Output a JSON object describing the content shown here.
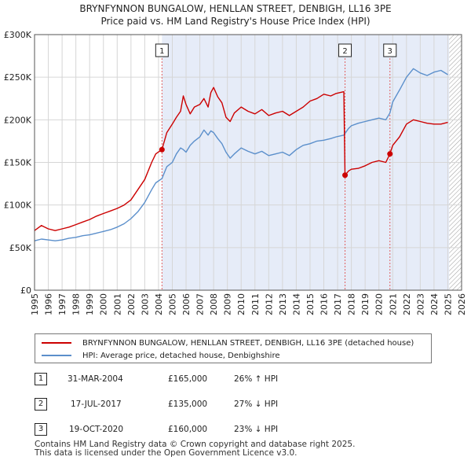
{
  "chart_data": {
    "type": "line",
    "title": "BRYNFYNNON BUNGALOW, HENLLAN STREET, DENBIGH, LL16 3PE",
    "subtitle": "Price paid vs. HM Land Registry's House Price Index (HPI)",
    "x_ticks": [
      "1995",
      "1996",
      "1997",
      "1998",
      "1999",
      "2000",
      "2001",
      "2002",
      "2003",
      "2004",
      "2005",
      "2006",
      "2007",
      "2008",
      "2009",
      "2010",
      "2011",
      "2012",
      "2013",
      "2014",
      "2015",
      "2016",
      "2017",
      "2018",
      "2019",
      "2020",
      "2021",
      "2022",
      "2023",
      "2024",
      "2025",
      "2026"
    ],
    "y_ticks": [
      "£0",
      "£50K",
      "£100K",
      "£150K",
      "£200K",
      "£250K",
      "£300K"
    ],
    "xlim": [
      1995,
      2026
    ],
    "ylim": [
      0,
      300000
    ],
    "grid": true,
    "series": [
      {
        "name": "BRYNFYNNON BUNGALOW, HENLLAN STREET, DENBIGH, LL16 3PE (detached house)",
        "color": "#cc0000",
        "points": [
          [
            1995.0,
            70000
          ],
          [
            1995.5,
            76000
          ],
          [
            1996.0,
            72000
          ],
          [
            1996.5,
            70000
          ],
          [
            1997.0,
            72000
          ],
          [
            1997.5,
            74000
          ],
          [
            1998.0,
            77000
          ],
          [
            1998.5,
            80000
          ],
          [
            1999.0,
            83000
          ],
          [
            1999.5,
            87000
          ],
          [
            2000.0,
            90000
          ],
          [
            2000.5,
            93000
          ],
          [
            2001.0,
            96000
          ],
          [
            2001.5,
            100000
          ],
          [
            2002.0,
            106000
          ],
          [
            2002.5,
            118000
          ],
          [
            2003.0,
            130000
          ],
          [
            2003.5,
            150000
          ],
          [
            2003.8,
            160000
          ],
          [
            2004.25,
            165000
          ],
          [
            2004.6,
            185000
          ],
          [
            2005.0,
            195000
          ],
          [
            2005.3,
            203000
          ],
          [
            2005.6,
            210000
          ],
          [
            2005.8,
            228000
          ],
          [
            2006.0,
            218000
          ],
          [
            2006.3,
            207000
          ],
          [
            2006.6,
            215000
          ],
          [
            2007.0,
            218000
          ],
          [
            2007.3,
            225000
          ],
          [
            2007.6,
            215000
          ],
          [
            2007.8,
            232000
          ],
          [
            2008.0,
            238000
          ],
          [
            2008.3,
            227000
          ],
          [
            2008.6,
            220000
          ],
          [
            2008.9,
            203000
          ],
          [
            2009.2,
            198000
          ],
          [
            2009.5,
            208000
          ],
          [
            2010.0,
            215000
          ],
          [
            2010.5,
            210000
          ],
          [
            2011.0,
            207000
          ],
          [
            2011.5,
            212000
          ],
          [
            2012.0,
            205000
          ],
          [
            2012.5,
            208000
          ],
          [
            2013.0,
            210000
          ],
          [
            2013.5,
            205000
          ],
          [
            2014.0,
            210000
          ],
          [
            2014.5,
            215000
          ],
          [
            2015.0,
            222000
          ],
          [
            2015.5,
            225000
          ],
          [
            2016.0,
            230000
          ],
          [
            2016.5,
            228000
          ],
          [
            2016.9,
            231000
          ],
          [
            2017.45,
            233000
          ],
          [
            2017.54,
            135000
          ],
          [
            2017.8,
            140000
          ],
          [
            2018.0,
            142000
          ],
          [
            2018.5,
            143000
          ],
          [
            2019.0,
            146000
          ],
          [
            2019.5,
            150000
          ],
          [
            2020.0,
            152000
          ],
          [
            2020.5,
            150000
          ],
          [
            2020.8,
            160000
          ],
          [
            2021.0,
            170000
          ],
          [
            2021.5,
            180000
          ],
          [
            2022.0,
            195000
          ],
          [
            2022.5,
            200000
          ],
          [
            2023.0,
            198000
          ],
          [
            2023.5,
            196000
          ],
          [
            2024.0,
            195000
          ],
          [
            2024.5,
            195000
          ],
          [
            2025.0,
            197000
          ]
        ]
      },
      {
        "name": "HPI: Average price, detached house, Denbighshire",
        "color": "#5b8fcb",
        "points": [
          [
            1995.0,
            58000
          ],
          [
            1995.5,
            60000
          ],
          [
            1996.0,
            59000
          ],
          [
            1996.5,
            58000
          ],
          [
            1997.0,
            59000
          ],
          [
            1997.5,
            61000
          ],
          [
            1998.0,
            62000
          ],
          [
            1998.5,
            64000
          ],
          [
            1999.0,
            65000
          ],
          [
            1999.5,
            67000
          ],
          [
            2000.0,
            69000
          ],
          [
            2000.5,
            71000
          ],
          [
            2001.0,
            74000
          ],
          [
            2001.5,
            78000
          ],
          [
            2002.0,
            84000
          ],
          [
            2002.5,
            92000
          ],
          [
            2003.0,
            103000
          ],
          [
            2003.5,
            118000
          ],
          [
            2003.8,
            126000
          ],
          [
            2004.25,
            131000
          ],
          [
            2004.6,
            145000
          ],
          [
            2005.0,
            150000
          ],
          [
            2005.3,
            160000
          ],
          [
            2005.6,
            167000
          ],
          [
            2005.8,
            165000
          ],
          [
            2006.0,
            162000
          ],
          [
            2006.3,
            170000
          ],
          [
            2006.6,
            175000
          ],
          [
            2007.0,
            180000
          ],
          [
            2007.3,
            188000
          ],
          [
            2007.6,
            182000
          ],
          [
            2007.8,
            187000
          ],
          [
            2008.0,
            185000
          ],
          [
            2008.3,
            178000
          ],
          [
            2008.6,
            172000
          ],
          [
            2008.9,
            162000
          ],
          [
            2009.2,
            155000
          ],
          [
            2009.5,
            160000
          ],
          [
            2010.0,
            167000
          ],
          [
            2010.5,
            163000
          ],
          [
            2011.0,
            160000
          ],
          [
            2011.5,
            163000
          ],
          [
            2012.0,
            158000
          ],
          [
            2012.5,
            160000
          ],
          [
            2013.0,
            162000
          ],
          [
            2013.5,
            158000
          ],
          [
            2014.0,
            165000
          ],
          [
            2014.5,
            170000
          ],
          [
            2015.0,
            172000
          ],
          [
            2015.5,
            175000
          ],
          [
            2016.0,
            176000
          ],
          [
            2016.5,
            178000
          ],
          [
            2016.9,
            180000
          ],
          [
            2017.45,
            182000
          ],
          [
            2017.54,
            184000
          ],
          [
            2017.8,
            190000
          ],
          [
            2018.0,
            193000
          ],
          [
            2018.5,
            196000
          ],
          [
            2019.0,
            198000
          ],
          [
            2019.5,
            200000
          ],
          [
            2020.0,
            202000
          ],
          [
            2020.5,
            200000
          ],
          [
            2020.8,
            208000
          ],
          [
            2021.0,
            221000
          ],
          [
            2021.5,
            235000
          ],
          [
            2022.0,
            250000
          ],
          [
            2022.5,
            260000
          ],
          [
            2023.0,
            255000
          ],
          [
            2023.5,
            252000
          ],
          [
            2024.0,
            256000
          ],
          [
            2024.5,
            258000
          ],
          [
            2025.0,
            253000
          ]
        ]
      }
    ],
    "sales": [
      {
        "num": "1",
        "x": 2004.25,
        "y": 165000
      },
      {
        "num": "2",
        "x": 2017.54,
        "y": 135000
      },
      {
        "num": "3",
        "x": 2020.8,
        "y": 160000
      }
    ],
    "shade_from": 2004.25,
    "shade_to": 2025.1,
    "future_from": 2025.1
  },
  "legend": [
    {
      "label": "BRYNFYNNON BUNGALOW, HENLLAN STREET, DENBIGH, LL16 3PE (detached house)",
      "color": "#cc0000"
    },
    {
      "label": "HPI: Average price, detached house, Denbighshire",
      "color": "#5b8fcb"
    }
  ],
  "table": [
    {
      "num": "1",
      "date": "31-MAR-2004",
      "price": "£165,000",
      "hpi": "26% ↑ HPI"
    },
    {
      "num": "2",
      "date": "17-JUL-2017",
      "price": "£135,000",
      "hpi": "27% ↓ HPI"
    },
    {
      "num": "3",
      "date": "19-OCT-2020",
      "price": "£160,000",
      "hpi": "23% ↓ HPI"
    }
  ],
  "footer": {
    "line1": "Contains HM Land Registry data © Crown copyright and database right 2025.",
    "line2": "This data is licensed under the Open Government Licence v3.0."
  }
}
